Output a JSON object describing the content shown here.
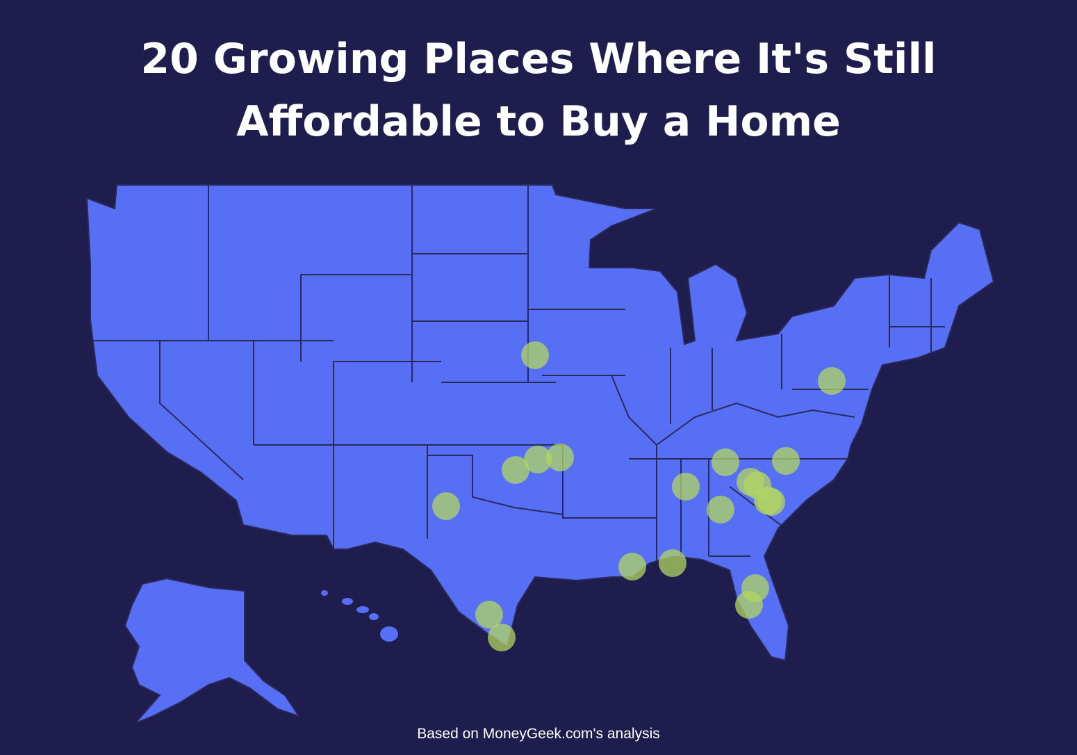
{
  "header": {
    "title": "20 Growing Places Where It's Still Affordable to Buy a Home"
  },
  "footer": {
    "note": "Based on MoneyGeek.com's analysis"
  }
}
